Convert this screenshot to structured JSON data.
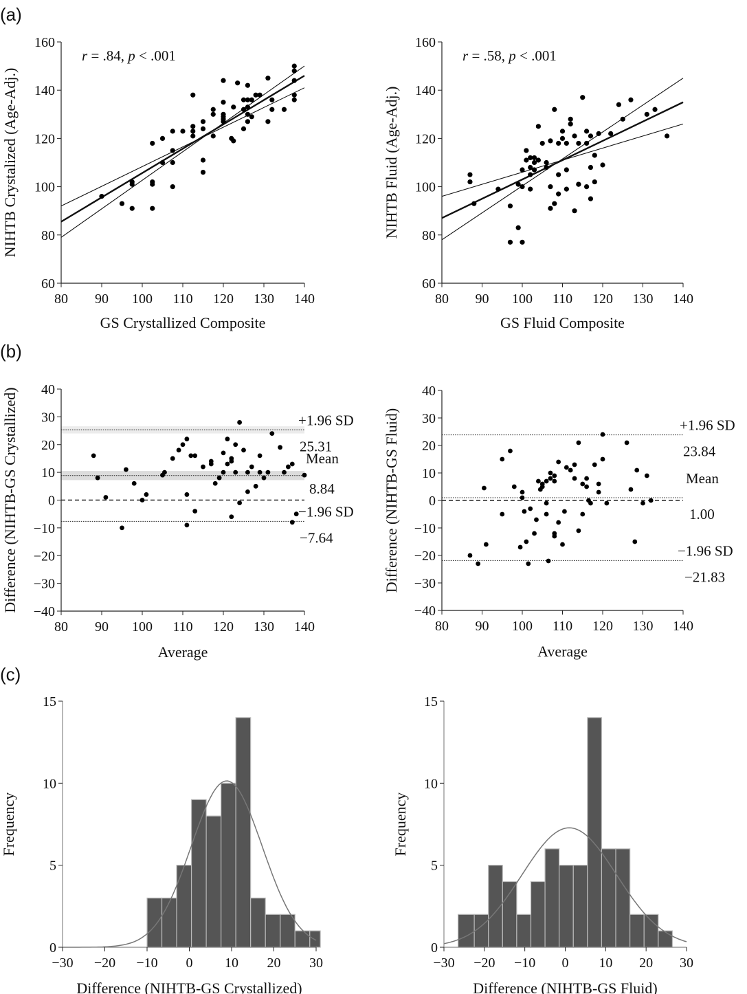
{
  "panel_labels": [
    "(a)",
    "(b)",
    "(c)"
  ],
  "chart_data": [
    {
      "id": "a1",
      "type": "scatter",
      "annotation": {
        "r": ".84",
        "p": ".001"
      },
      "xlabel": "GS Crystallized Composite",
      "ylabel": "NIHTB Crystalized (Age-Adj.)",
      "xlim": [
        80,
        140
      ],
      "ylim": [
        60,
        160
      ],
      "xticks": [
        "80",
        "90",
        "100",
        "110",
        "120",
        "130",
        "140"
      ],
      "yticks": [
        "60",
        "80",
        "100",
        "120",
        "140",
        "160"
      ],
      "regression": {
        "x": [
          80,
          140
        ],
        "y": [
          85.5,
          146
        ]
      },
      "ci_upper": {
        "x": [
          80,
          140
        ],
        "y": [
          92,
          141
        ]
      },
      "ci_lower": {
        "x": [
          80,
          140
        ],
        "y": [
          79,
          150
        ]
      },
      "points": [
        [
          90,
          96
        ],
        [
          95,
          93
        ],
        [
          97.5,
          91
        ],
        [
          97.5,
          101
        ],
        [
          97.5,
          102
        ],
        [
          102.5,
          118
        ],
        [
          102.5,
          102
        ],
        [
          102.5,
          101
        ],
        [
          102.5,
          91
        ],
        [
          105,
          120
        ],
        [
          105,
          110
        ],
        [
          107.5,
          115
        ],
        [
          107.5,
          110
        ],
        [
          107.5,
          100
        ],
        [
          107.5,
          123
        ],
        [
          110,
          123
        ],
        [
          112.5,
          138
        ],
        [
          112.5,
          125
        ],
        [
          112.5,
          123
        ],
        [
          112.5,
          121
        ],
        [
          115,
          124
        ],
        [
          115,
          127
        ],
        [
          115,
          111
        ],
        [
          115,
          106
        ],
        [
          117.5,
          132
        ],
        [
          117.5,
          130
        ],
        [
          117.5,
          121
        ],
        [
          120,
          144
        ],
        [
          120,
          135
        ],
        [
          120,
          130
        ],
        [
          120,
          129
        ],
        [
          120,
          128
        ],
        [
          120,
          127
        ],
        [
          122,
          120
        ],
        [
          122.5,
          133
        ],
        [
          122.5,
          119
        ],
        [
          123.5,
          143
        ],
        [
          125,
          136
        ],
        [
          125,
          132
        ],
        [
          125,
          124
        ],
        [
          126,
          136
        ],
        [
          126,
          133
        ],
        [
          126,
          130
        ],
        [
          126,
          127
        ],
        [
          126,
          142
        ],
        [
          127,
          136
        ],
        [
          127,
          129
        ],
        [
          128,
          138
        ],
        [
          129,
          138
        ],
        [
          131,
          145
        ],
        [
          131,
          127
        ],
        [
          132,
          132
        ],
        [
          132,
          136
        ],
        [
          135,
          132
        ],
        [
          137.5,
          150
        ],
        [
          137.5,
          148
        ],
        [
          137.5,
          144
        ],
        [
          137.5,
          138
        ],
        [
          137.5,
          136
        ]
      ]
    },
    {
      "id": "a2",
      "type": "scatter",
      "annotation": {
        "r": ".58",
        "p": ".001"
      },
      "xlabel": "GS Fluid Composite",
      "ylabel": "NIHTB Fluid (Age-Adj.)",
      "xlim": [
        80,
        140
      ],
      "ylim": [
        60,
        160
      ],
      "xticks": [
        "80",
        "90",
        "100",
        "110",
        "120",
        "130",
        "140"
      ],
      "yticks": [
        "60",
        "80",
        "100",
        "120",
        "140",
        "160"
      ],
      "regression": {
        "x": [
          80,
          140
        ],
        "y": [
          87,
          135
        ]
      },
      "ci_upper": {
        "x": [
          80,
          140
        ],
        "y": [
          96,
          126
        ]
      },
      "ci_lower": {
        "x": [
          80,
          140
        ],
        "y": [
          78,
          145
        ]
      },
      "points": [
        [
          87,
          102
        ],
        [
          87,
          105
        ],
        [
          88,
          93
        ],
        [
          94,
          99
        ],
        [
          97,
          92
        ],
        [
          97,
          77
        ],
        [
          99,
          101
        ],
        [
          99,
          83
        ],
        [
          100,
          77
        ],
        [
          100,
          100
        ],
        [
          100,
          107
        ],
        [
          101,
          115
        ],
        [
          101,
          111
        ],
        [
          102,
          112
        ],
        [
          102,
          108
        ],
        [
          102,
          105
        ],
        [
          102,
          99
        ],
        [
          103,
          112
        ],
        [
          103,
          110
        ],
        [
          103,
          107
        ],
        [
          104,
          111
        ],
        [
          104,
          125
        ],
        [
          105,
          118
        ],
        [
          106,
          108
        ],
        [
          106,
          110
        ],
        [
          107,
          119
        ],
        [
          107,
          100
        ],
        [
          107,
          91
        ],
        [
          108,
          93
        ],
        [
          108,
          132
        ],
        [
          109,
          105
        ],
        [
          109,
          97
        ],
        [
          109,
          118
        ],
        [
          110,
          123
        ],
        [
          110,
          120
        ],
        [
          111,
          118
        ],
        [
          111,
          107
        ],
        [
          111,
          99
        ],
        [
          112,
          128
        ],
        [
          112,
          126
        ],
        [
          113,
          121
        ],
        [
          113,
          90
        ],
        [
          114,
          118
        ],
        [
          114,
          101
        ],
        [
          114,
          101
        ],
        [
          115,
          137
        ],
        [
          116,
          123
        ],
        [
          116,
          100
        ],
        [
          116,
          118
        ],
        [
          117,
          95
        ],
        [
          117,
          121
        ],
        [
          117,
          108
        ],
        [
          118,
          102
        ],
        [
          118,
          113
        ],
        [
          119,
          122
        ],
        [
          120,
          109
        ],
        [
          122,
          122
        ],
        [
          124,
          134
        ],
        [
          125,
          128
        ],
        [
          127,
          136
        ],
        [
          131,
          130
        ],
        [
          133,
          132
        ],
        [
          136,
          121
        ]
      ]
    },
    {
      "id": "b1",
      "type": "scatter",
      "xlabel": "Average",
      "ylabel": "Difference (NIHTB-GS Crystallized)",
      "xlim": [
        80,
        140
      ],
      "ylim": [
        -40,
        40
      ],
      "xticks": [
        "80",
        "90",
        "100",
        "110",
        "120",
        "130",
        "140"
      ],
      "yticks": [
        "−40",
        "−30",
        "−20",
        "−10",
        "0",
        "10",
        "20",
        "30",
        "40"
      ],
      "lines": {
        "upper": 25.31,
        "mean": 8.84,
        "lower": -7.64,
        "zero": 0
      },
      "labels": {
        "upper": "+1.96 SD",
        "upper_val": "25.31",
        "mean": "Mean",
        "mean_val": "8.84",
        "lower": "−1.96 SD",
        "lower_val": "−7.64"
      },
      "points": [
        [
          88,
          16
        ],
        [
          89,
          8
        ],
        [
          91,
          1
        ],
        [
          96,
          11
        ],
        [
          95,
          -10
        ],
        [
          98,
          6
        ],
        [
          100,
          0
        ],
        [
          101,
          2
        ],
        [
          105,
          9
        ],
        [
          105.5,
          10
        ],
        [
          107.5,
          15
        ],
        [
          109,
          18
        ],
        [
          110,
          20
        ],
        [
          111,
          -9
        ],
        [
          111,
          22
        ],
        [
          111,
          2
        ],
        [
          112,
          16
        ],
        [
          113,
          16
        ],
        [
          113,
          -4
        ],
        [
          115,
          12
        ],
        [
          117,
          14
        ],
        [
          117,
          13
        ],
        [
          118,
          6
        ],
        [
          119,
          8
        ],
        [
          120,
          10
        ],
        [
          120,
          17
        ],
        [
          121,
          22
        ],
        [
          121,
          13
        ],
        [
          122,
          14
        ],
        [
          122,
          -6
        ],
        [
          122,
          15
        ],
        [
          123,
          20
        ],
        [
          123,
          10
        ],
        [
          124,
          28
        ],
        [
          124,
          -1
        ],
        [
          125,
          18
        ],
        [
          126,
          3
        ],
        [
          126,
          10
        ],
        [
          127,
          12
        ],
        [
          128,
          5
        ],
        [
          129,
          16
        ],
        [
          129,
          10
        ],
        [
          130,
          8
        ],
        [
          131,
          10
        ],
        [
          132,
          24
        ],
        [
          134,
          19
        ],
        [
          135,
          10
        ],
        [
          136,
          12
        ],
        [
          137,
          -8
        ],
        [
          137,
          13
        ],
        [
          138,
          -5
        ],
        [
          140,
          9
        ]
      ]
    },
    {
      "id": "b2",
      "type": "scatter",
      "xlabel": "Average",
      "ylabel": "Difference (NIHTB-GS Fluid)",
      "xlim": [
        80,
        140
      ],
      "ylim": [
        -40,
        40
      ],
      "xticks": [
        "80",
        "90",
        "100",
        "110",
        "120",
        "130",
        "140"
      ],
      "yticks": [
        "−40",
        "−30",
        "−20",
        "−10",
        "0",
        "10",
        "20",
        "30",
        "40"
      ],
      "lines": {
        "upper": 23.84,
        "mean": 1.0,
        "lower": -21.83,
        "zero": 0
      },
      "labels": {
        "upper": "+1.96 SD",
        "upper_val": "23.84",
        "mean": "Mean",
        "mean_val": "1.00",
        "lower": "−1.96 SD",
        "lower_val": "−21.83"
      },
      "points": [
        [
          87,
          -20
        ],
        [
          89,
          -23
        ],
        [
          90.5,
          4.5
        ],
        [
          91,
          -16
        ],
        [
          95,
          -5
        ],
        [
          95,
          15
        ],
        [
          97,
          18
        ],
        [
          98,
          5
        ],
        [
          99.5,
          -17
        ],
        [
          100,
          3
        ],
        [
          100,
          1
        ],
        [
          100.5,
          -4
        ],
        [
          101,
          -15
        ],
        [
          101.5,
          -23
        ],
        [
          102,
          -3
        ],
        [
          103,
          -12
        ],
        [
          103.5,
          -7
        ],
        [
          104,
          7
        ],
        [
          104.5,
          4
        ],
        [
          105,
          5
        ],
        [
          105,
          6
        ],
        [
          106,
          7
        ],
        [
          106,
          -1
        ],
        [
          106,
          -5
        ],
        [
          106.5,
          -22
        ],
        [
          107,
          10
        ],
        [
          107,
          8
        ],
        [
          108,
          9
        ],
        [
          108,
          -12
        ],
        [
          108,
          -13
        ],
        [
          108,
          7
        ],
        [
          109,
          14
        ],
        [
          109,
          -8
        ],
        [
          110,
          -16
        ],
        [
          110.5,
          -4
        ],
        [
          111,
          12
        ],
        [
          112,
          11
        ],
        [
          113,
          8
        ],
        [
          113,
          13
        ],
        [
          114,
          -11
        ],
        [
          114,
          21
        ],
        [
          115,
          6
        ],
        [
          115,
          -5
        ],
        [
          116,
          8
        ],
        [
          116,
          5
        ],
        [
          116.5,
          0
        ],
        [
          117,
          -1
        ],
        [
          118,
          13
        ],
        [
          119,
          6
        ],
        [
          119,
          3
        ],
        [
          120,
          24
        ],
        [
          120,
          15
        ],
        [
          121,
          -1
        ],
        [
          126,
          21
        ],
        [
          127,
          4
        ],
        [
          128,
          -15
        ],
        [
          128.5,
          11
        ],
        [
          130,
          -1
        ],
        [
          131,
          9
        ],
        [
          132,
          0
        ]
      ]
    },
    {
      "id": "c1",
      "type": "bar",
      "xlabel": "Difference (NIHTB-GS Crystallized)",
      "ylabel": "Frequency",
      "xlim": [
        -30,
        30
      ],
      "ylim": [
        0,
        15
      ],
      "xticks": [
        "−30",
        "−20",
        "−10",
        "0",
        "10",
        "20",
        "30"
      ],
      "yticks": [
        "0",
        "5",
        "10",
        "15"
      ],
      "bin_edges": [
        -10,
        -6.5,
        -3,
        0.5,
        4,
        7.5,
        11,
        14.5,
        18,
        21.5,
        25,
        28.5,
        31
      ],
      "values": [
        3,
        3,
        5,
        9,
        8,
        10,
        14,
        3,
        2,
        2,
        1,
        1
      ],
      "normal_curve": {
        "mean": 8.84,
        "sd": 8.4,
        "n": 61,
        "bin_width": 3.5
      }
    },
    {
      "id": "c2",
      "type": "bar",
      "xlabel": "Difference (NIHTB-GS Fluid)",
      "ylabel": "Frequency",
      "xlim": [
        -30,
        30
      ],
      "ylim": [
        0,
        15
      ],
      "xticks": [
        "−30",
        "−20",
        "−10",
        "0",
        "10",
        "20",
        "30"
      ],
      "yticks": [
        "0",
        "5",
        "10",
        "15"
      ],
      "bin_edges": [
        -26.5,
        -22.5,
        -19,
        -15.5,
        -12,
        -8.5,
        -5,
        -1.5,
        2,
        5.5,
        9,
        12.5,
        16,
        19.5,
        23,
        26.5
      ],
      "values": [
        2,
        2,
        5,
        4,
        2,
        4,
        6,
        5,
        5,
        14,
        6,
        6,
        2,
        2,
        1
      ],
      "normal_curve": {
        "mean": 1.0,
        "sd": 11.7,
        "n": 61,
        "bin_width": 3.5
      }
    }
  ]
}
